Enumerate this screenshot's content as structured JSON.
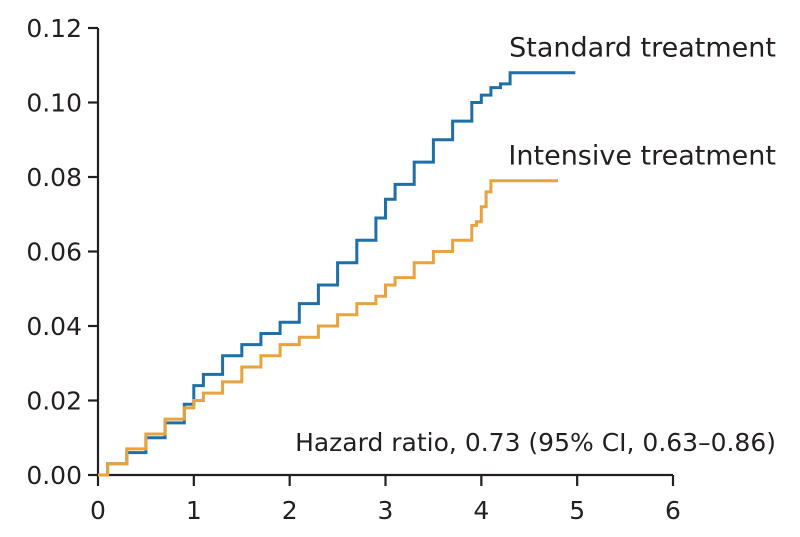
{
  "chart_data": {
    "type": "line",
    "title": "",
    "xlabel": "",
    "ylabel": "",
    "xlim": [
      0,
      6
    ],
    "ylim": [
      0,
      0.12
    ],
    "xticks": [
      "0",
      "1",
      "2",
      "3",
      "4",
      "5",
      "6"
    ],
    "yticks": [
      "0.00",
      "0.02",
      "0.04",
      "0.06",
      "0.08",
      "0.10",
      "0.12"
    ],
    "grid": false,
    "legend": "inline labels near line ends",
    "annotation": "Hazard ratio, 0.73 (95% CI, 0.63–0.86)",
    "series": [
      {
        "name": "Standard treatment",
        "color": "#1f6fa8",
        "x": [
          0,
          0.1,
          0.3,
          0.5,
          0.7,
          0.9,
          1.0,
          1.1,
          1.3,
          1.5,
          1.7,
          1.9,
          2.1,
          2.3,
          2.5,
          2.7,
          2.9,
          3.0,
          3.1,
          3.3,
          3.5,
          3.7,
          3.9,
          4.0,
          4.1,
          4.2,
          4.3,
          4.4,
          4.6,
          4.8,
          4.98
        ],
        "y": [
          0,
          0.003,
          0.006,
          0.01,
          0.014,
          0.019,
          0.024,
          0.027,
          0.032,
          0.035,
          0.038,
          0.041,
          0.046,
          0.051,
          0.057,
          0.063,
          0.069,
          0.074,
          0.078,
          0.084,
          0.09,
          0.095,
          0.1,
          0.102,
          0.104,
          0.105,
          0.108,
          0.108,
          0.108,
          0.108,
          0.108
        ]
      },
      {
        "name": "Intensive treatment",
        "color": "#e8a33c",
        "x": [
          0,
          0.1,
          0.3,
          0.5,
          0.7,
          0.9,
          1.0,
          1.1,
          1.3,
          1.5,
          1.7,
          1.9,
          2.1,
          2.3,
          2.5,
          2.7,
          2.9,
          3.0,
          3.1,
          3.3,
          3.5,
          3.7,
          3.9,
          3.95,
          4.0,
          4.05,
          4.1,
          4.2,
          4.4,
          4.6,
          4.8
        ],
        "y": [
          0,
          0.003,
          0.007,
          0.011,
          0.015,
          0.018,
          0.02,
          0.022,
          0.025,
          0.029,
          0.032,
          0.035,
          0.037,
          0.04,
          0.043,
          0.046,
          0.048,
          0.051,
          0.053,
          0.057,
          0.06,
          0.063,
          0.067,
          0.068,
          0.072,
          0.076,
          0.079,
          0.079,
          0.079,
          0.079,
          0.079
        ]
      }
    ]
  }
}
